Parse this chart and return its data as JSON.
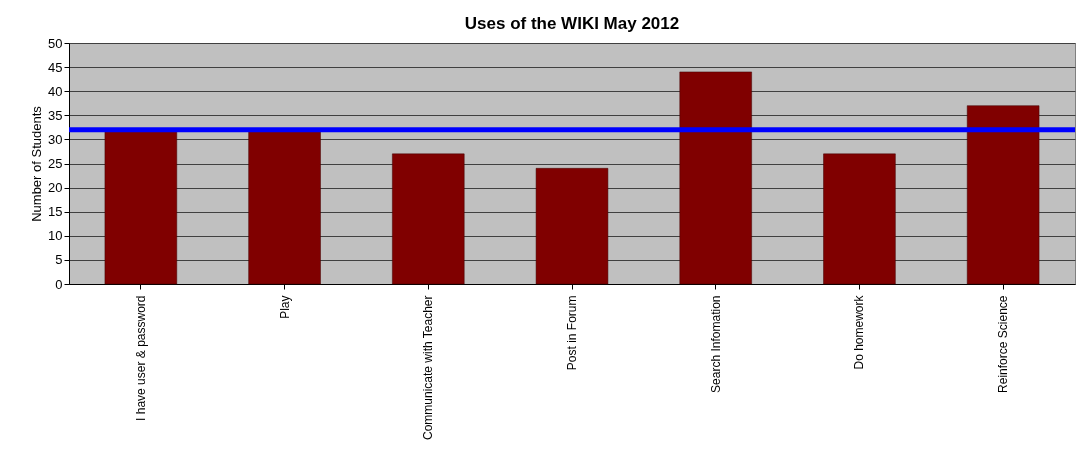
{
  "chart_data": {
    "type": "bar",
    "title": "Uses of the WIKI May 2012",
    "ylabel": "Number of Students",
    "categories": [
      "I have user & password",
      "Play",
      "Communicate with Teacher",
      "Post in Forum",
      "Search Infomation",
      "Do homework",
      "Reinforce Science"
    ],
    "values": [
      32,
      32,
      27,
      24,
      44,
      27,
      37
    ],
    "color": "#800000",
    "ylim": [
      0,
      50
    ],
    "yticks": [
      0,
      5,
      10,
      15,
      20,
      25,
      30,
      35,
      40,
      45,
      50
    ],
    "grid": "y",
    "ref_lines": [
      {
        "axis": "y",
        "value": 32,
        "color": "#0000ff",
        "line_style": "solid"
      }
    ]
  }
}
